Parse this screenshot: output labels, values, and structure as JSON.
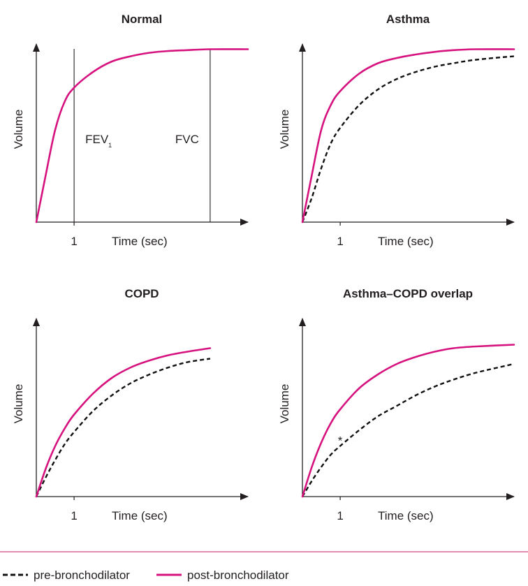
{
  "colors": {
    "post": "#d6127f",
    "pre": "#111111",
    "axis": "#231f20",
    "rule": "#c41e6a"
  },
  "legend": {
    "pre_label": "pre-bronchodilator",
    "post_label": "post-bronchodilator"
  },
  "chart_data": [
    {
      "type": "line",
      "title": "Normal",
      "xlabel": "Time (sec)",
      "ylabel": "Volume",
      "x_ticks": [
        "1"
      ],
      "xlim": [
        0,
        5.6
      ],
      "ylim": [
        0,
        1.0
      ],
      "annotations": [
        {
          "text": "FEV",
          "subscript": "1",
          "x": 1,
          "y": 0.48
        },
        {
          "text": "FVC",
          "x": 4.6,
          "y": 0.48
        }
      ],
      "vlines": [
        1,
        4.6
      ],
      "series": [
        {
          "role": "post",
          "style": "solid",
          "x": [
            0,
            0.25,
            0.5,
            0.75,
            1.0,
            1.5,
            2.0,
            2.5,
            3.0,
            3.5,
            4.0,
            4.6,
            5.6
          ],
          "y": [
            0,
            0.27,
            0.53,
            0.69,
            0.77,
            0.86,
            0.92,
            0.95,
            0.97,
            0.98,
            0.985,
            0.99,
            0.99
          ]
        }
      ]
    },
    {
      "type": "line",
      "title": "Asthma",
      "xlabel": "Time (sec)",
      "ylabel": "Volume",
      "x_ticks": [
        "1"
      ],
      "xlim": [
        0,
        5.6
      ],
      "ylim": [
        0,
        1.0
      ],
      "series": [
        {
          "role": "post",
          "style": "solid",
          "x": [
            0,
            0.25,
            0.5,
            0.75,
            1.0,
            1.5,
            2.0,
            2.5,
            3.0,
            3.5,
            4.0,
            4.6,
            5.6
          ],
          "y": [
            0,
            0.27,
            0.53,
            0.67,
            0.75,
            0.85,
            0.91,
            0.94,
            0.96,
            0.975,
            0.985,
            0.99,
            0.99
          ]
        },
        {
          "role": "pre",
          "style": "dashed",
          "x": [
            0,
            0.25,
            0.5,
            0.75,
            1.0,
            1.5,
            2.0,
            2.5,
            3.0,
            3.5,
            4.0,
            4.6,
            5.6
          ],
          "y": [
            0,
            0.14,
            0.31,
            0.45,
            0.54,
            0.67,
            0.76,
            0.82,
            0.86,
            0.89,
            0.91,
            0.93,
            0.95
          ]
        }
      ]
    },
    {
      "type": "line",
      "title": "COPD",
      "xlabel": "Time (sec)",
      "ylabel": "Volume",
      "x_ticks": [
        "1"
      ],
      "xlim": [
        0,
        5.6
      ],
      "ylim": [
        0,
        1.0
      ],
      "series": [
        {
          "role": "post",
          "style": "solid",
          "x": [
            0,
            0.25,
            0.5,
            0.75,
            1.0,
            1.5,
            2.0,
            2.5,
            3.0,
            3.5,
            4.0,
            4.6
          ],
          "y": [
            0,
            0.16,
            0.29,
            0.39,
            0.47,
            0.59,
            0.68,
            0.74,
            0.78,
            0.81,
            0.83,
            0.85
          ]
        },
        {
          "role": "pre",
          "style": "dashed",
          "x": [
            0,
            0.25,
            0.5,
            0.75,
            1.0,
            1.5,
            2.0,
            2.5,
            3.0,
            3.5,
            4.0,
            4.6
          ],
          "y": [
            0,
            0.11,
            0.21,
            0.3,
            0.37,
            0.49,
            0.58,
            0.65,
            0.7,
            0.74,
            0.77,
            0.79
          ]
        }
      ]
    },
    {
      "type": "line",
      "title": "Asthma–COPD overlap",
      "xlabel": "Time (sec)",
      "ylabel": "Volume",
      "x_ticks": [
        "1"
      ],
      "xlim": [
        0,
        5.6
      ],
      "ylim": [
        0,
        1.0
      ],
      "annotations": [
        {
          "text": "*",
          "x": 1,
          "y": 0.33
        }
      ],
      "series": [
        {
          "role": "post",
          "style": "solid",
          "x": [
            0,
            0.25,
            0.5,
            0.75,
            1.0,
            1.5,
            2.0,
            2.5,
            3.0,
            3.5,
            4.0,
            4.6,
            5.6
          ],
          "y": [
            0,
            0.17,
            0.31,
            0.42,
            0.5,
            0.62,
            0.7,
            0.76,
            0.8,
            0.83,
            0.85,
            0.86,
            0.87
          ]
        },
        {
          "role": "pre",
          "style": "dashed",
          "x": [
            0,
            0.25,
            0.5,
            0.75,
            1.0,
            1.5,
            2.0,
            2.5,
            3.0,
            3.5,
            4.0,
            4.6,
            5.6
          ],
          "y": [
            0,
            0.09,
            0.17,
            0.24,
            0.29,
            0.38,
            0.46,
            0.52,
            0.58,
            0.63,
            0.67,
            0.71,
            0.76
          ]
        }
      ]
    }
  ]
}
